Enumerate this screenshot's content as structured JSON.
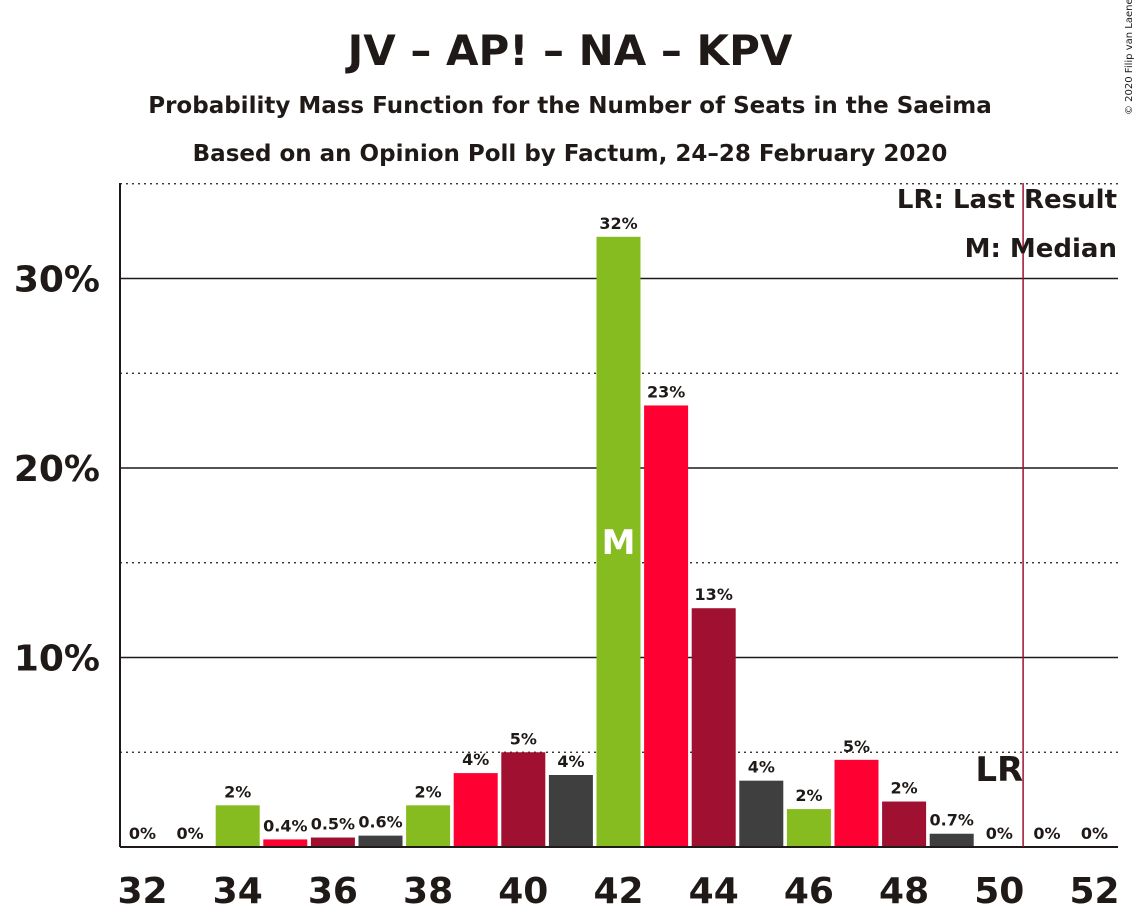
{
  "chart_data": {
    "type": "bar",
    "title": "JV – AP! – NA – KPV",
    "subtitle_1": "Probability Mass Function for the Number of Seats in the Saeima",
    "subtitle_2": "Based on an Opinion Poll by Factum, 24–28 February 2020",
    "copyright": "© 2020 Filip van Laenen",
    "legend": {
      "lr": "LR: Last Result",
      "m": "M: Median"
    },
    "x": [
      32,
      33,
      34,
      35,
      36,
      37,
      38,
      39,
      40,
      41,
      42,
      43,
      44,
      45,
      46,
      47,
      48,
      49,
      50,
      51,
      52
    ],
    "values": [
      0,
      0,
      2.2,
      0.4,
      0.5,
      0.6,
      2.2,
      3.9,
      5.0,
      3.8,
      32.2,
      23.3,
      12.6,
      3.5,
      2.0,
      4.6,
      2.4,
      0.7,
      0,
      0,
      0
    ],
    "labels": [
      "0%",
      "0%",
      "2%",
      "0.4%",
      "0.5%",
      "0.6%",
      "2%",
      "4%",
      "5%",
      "4%",
      "32%",
      "23%",
      "13%",
      "4%",
      "2%",
      "5%",
      "2%",
      "0.7%",
      "0%",
      "0%",
      "0%"
    ],
    "colors": [
      "#a01030",
      "#3f3f3f",
      "#86bc1f",
      "#ff0033"
    ],
    "x_ticks": [
      "32",
      "34",
      "36",
      "38",
      "40",
      "42",
      "44",
      "46",
      "48",
      "50",
      "52"
    ],
    "y_ticks": [
      "10%",
      "20%",
      "30%"
    ],
    "ylim": [
      0,
      35
    ],
    "median_seat": 42,
    "median_label": "M",
    "last_result_seat": 50,
    "last_result_label": "LR",
    "last_result_color": "#a01030"
  }
}
